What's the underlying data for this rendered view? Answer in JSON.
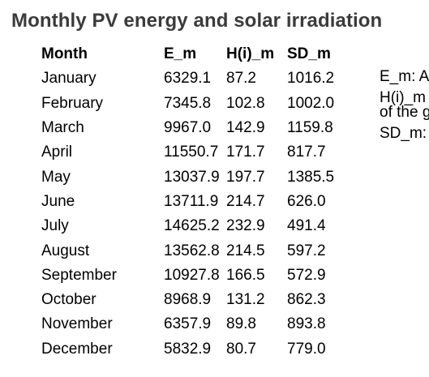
{
  "title": "Monthly PV energy and solar irradiation",
  "table": {
    "headers": [
      "Month",
      "E_m",
      "H(i)_m",
      "SD_m"
    ],
    "rows": [
      [
        "January",
        "6329.1",
        "87.2",
        "1016.2"
      ],
      [
        "February",
        "7345.8",
        "102.8",
        "1002.0"
      ],
      [
        "March",
        "9967.0",
        "142.9",
        "1159.8"
      ],
      [
        "April",
        "11550.7",
        "171.7",
        "817.7"
      ],
      [
        "May",
        "13037.9",
        "197.7",
        "1385.5"
      ],
      [
        "June",
        "13711.9",
        "214.7",
        "626.0"
      ],
      [
        "July",
        "14625.2",
        "232.9",
        "491.4"
      ],
      [
        "August",
        "13562.8",
        "214.5",
        "597.2"
      ],
      [
        "September",
        "10927.8",
        "166.5",
        "572.9"
      ],
      [
        "October",
        "8968.9",
        "131.2",
        "862.3"
      ],
      [
        "November",
        "6357.9",
        "89.8",
        "893.8"
      ],
      [
        "December",
        "5832.9",
        "80.7",
        "779.0"
      ]
    ]
  },
  "notes": {
    "em": "E_m: A",
    "h_line1": "H(i)_m",
    "h_line2": "of the g",
    "sd": "SD_m:"
  }
}
